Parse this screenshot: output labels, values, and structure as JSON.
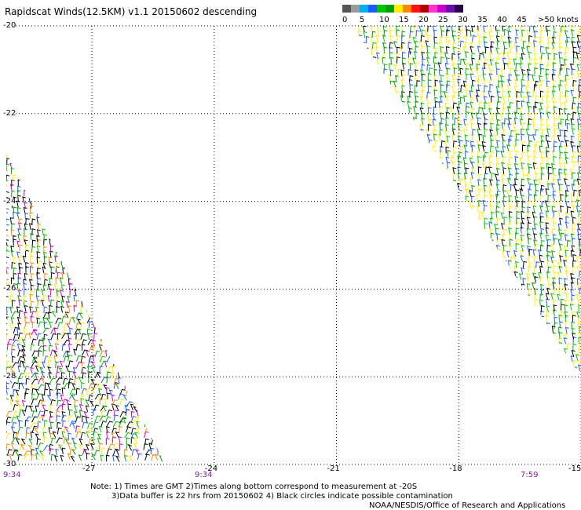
{
  "title": "Rapidscat Winds(12.5KM) v1.1 20150602 descending",
  "legend": {
    "labels": [
      "0",
      "5",
      "10",
      "15",
      "20",
      "25",
      "30",
      "35",
      "40",
      "45",
      ">50 knots"
    ],
    "colors": [
      "#555555",
      "#9a9a9a",
      "#00b0f0",
      "#1c5aff",
      "#00c400",
      "#00a000",
      "#ffee00",
      "#ff8800",
      "#ff1010",
      "#b00000",
      "#ff33cc",
      "#cc00cc",
      "#6a0dad",
      "#2b004f"
    ]
  },
  "axes": {
    "lat_labels": [
      "-20",
      "-22",
      "-24",
      "-26",
      "-28",
      "-30"
    ],
    "lon_labels": [
      "-27",
      "-24",
      "-21",
      "-18",
      "-15"
    ]
  },
  "times": {
    "left": "9:34",
    "middle": "9:34",
    "right": "7:59"
  },
  "notes": [
    "Note: 1) Times are GMT 2)Times along bottom correspond to measurement at -20S",
    "3)Data buffer is 22 hrs from 20150602 4) Black circles indicate possible contamination"
  ],
  "credit": "NOAA/NESDIS/Office of Research and Applications",
  "swaths": {
    "left": {
      "polygon": [
        [
          -29.1,
          -22.9
        ],
        [
          -29.1,
          -30.0
        ],
        [
          -25.2,
          -30.0
        ]
      ]
    },
    "right": {
      "polygon": [
        [
          -20.6,
          -20.0
        ],
        [
          -15.0,
          -20.0
        ],
        [
          -15.0,
          -28.0
        ]
      ]
    }
  }
}
